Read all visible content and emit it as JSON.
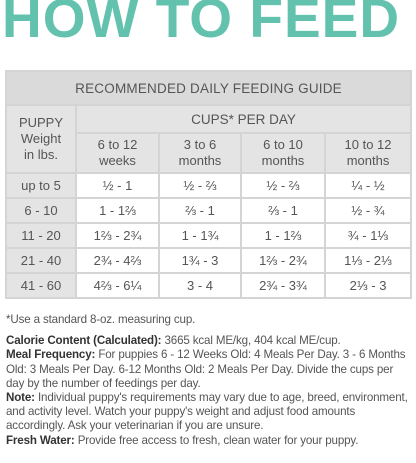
{
  "title": "HOW TO FEED",
  "table": {
    "caption": "RECOMMENDED DAILY FEEDING GUIDE",
    "corner_header": [
      "PUPPY",
      "Weight",
      "in lbs."
    ],
    "group_header": "CUPS* PER DAY",
    "columns": [
      [
        "6 to 12",
        "weeks"
      ],
      [
        "3 to 6",
        "months"
      ],
      [
        "6 to 10",
        "months"
      ],
      [
        "10 to 12",
        "months"
      ]
    ],
    "rows": [
      {
        "weight": "up to 5",
        "values": [
          "½ - 1",
          "½ - ⅔",
          "½ - ⅔",
          "¼ - ½"
        ]
      },
      {
        "weight": "6 - 10",
        "values": [
          "1 - 1⅔",
          "⅔ - 1",
          "⅔ - 1",
          "½ - ¾"
        ]
      },
      {
        "weight": "11 - 20",
        "values": [
          "1⅔ - 2¾",
          "1 - 1¾",
          "1 - 1⅔",
          "¾ - 1⅓"
        ]
      },
      {
        "weight": "21 - 40",
        "values": [
          "2¾ - 4⅔",
          "1¾ - 3",
          "1⅔ - 2¾",
          "1⅓ - 2⅓"
        ]
      },
      {
        "weight": "41 - 60",
        "values": [
          "4⅔ - 6¼",
          "3 - 4",
          "2¾ - 3¾",
          "2⅓ - 3"
        ]
      }
    ]
  },
  "notes": {
    "footnote": "*Use a standard 8-oz. measuring cup.",
    "paragraphs": [
      {
        "label": "Calorie Content (Calculated):",
        "text": "3665 kcal ME/kg, 404 kcal ME/cup."
      },
      {
        "label": "Meal Frequency:",
        "text": "For puppies 6 - 12 Weeks Old: 4 Meals Per Day. 3 - 6 Months Old: 3 Meals Per Day. 6-12 Months Old: 2 Meals Per Day. Divide the cups per day by the number of feedings per day."
      },
      {
        "label": "Note:",
        "text": "Individual puppy's requirements may vary due to age, breed, environment, and activity level. Watch your puppy's weight and adjust food amounts accordingly. Ask your veterinarian if you are unsure."
      },
      {
        "label": "Fresh Water:",
        "text": "Provide free access to fresh, clean water for your puppy."
      }
    ]
  }
}
